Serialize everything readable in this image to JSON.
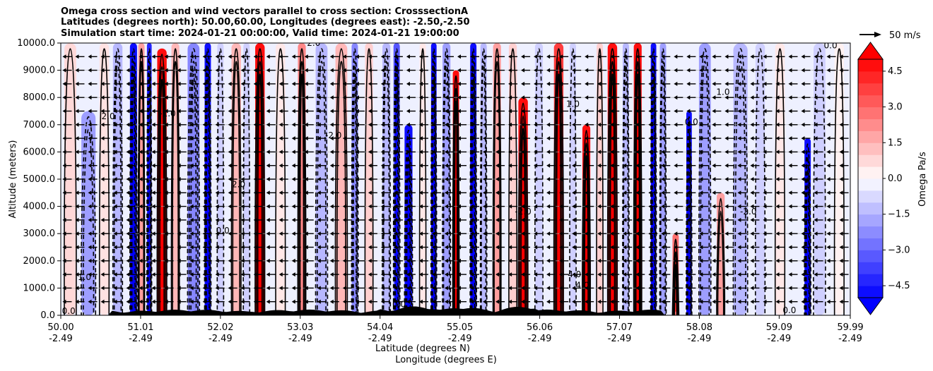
{
  "title_lines": [
    "Omega cross section and wind vectors parallel to cross section: CrosssectionA",
    "Latitudes (degrees north): 50.00,60.00, Longitudes (degrees east): -2.50,-2.50",
    "Simulation start time: 2024-01-21 00:00:00, Valid time: 2024-01-21 19:00:00"
  ],
  "quiver_key": "50 m/s",
  "chart_data": {
    "type": "heatmap",
    "title": "Omega cross section and wind vectors parallel to cross section: CrosssectionA",
    "xlabel": "Latitude (degrees N)",
    "xlabel2": "Longitude (degrees E)",
    "ylabel": "Altitude (meters)",
    "xlim": [
      50.0,
      59.99
    ],
    "ylim": [
      0,
      10000
    ],
    "x_ticks": [
      {
        "value": 50.0,
        "lat": "50.00",
        "lon": "-2.49"
      },
      {
        "value": 51.01,
        "lat": "51.01",
        "lon": "-2.49"
      },
      {
        "value": 52.02,
        "lat": "52.02",
        "lon": "-2.49"
      },
      {
        "value": 53.03,
        "lat": "53.03",
        "lon": "-2.49"
      },
      {
        "value": 54.04,
        "lat": "54.04",
        "lon": "-2.49"
      },
      {
        "value": 55.05,
        "lat": "55.05",
        "lon": "-2.49"
      },
      {
        "value": 56.06,
        "lat": "56.06",
        "lon": "-2.49"
      },
      {
        "value": 57.07,
        "lat": "57.07",
        "lon": "-2.49"
      },
      {
        "value": 58.08,
        "lat": "58.08",
        "lon": "-2.49"
      },
      {
        "value": 59.09,
        "lat": "59.09",
        "lon": "-2.49"
      },
      {
        "value": 59.99,
        "lat": "59.99",
        "lon": "-2.49"
      }
    ],
    "y_ticks": [
      {
        "value": 0,
        "label": "0.0"
      },
      {
        "value": 1000,
        "label": "1000.0"
      },
      {
        "value": 2000,
        "label": "2000.0"
      },
      {
        "value": 3000,
        "label": "3000.0"
      },
      {
        "value": 4000,
        "label": "4000.0"
      },
      {
        "value": 5000,
        "label": "5000.0"
      },
      {
        "value": 6000,
        "label": "6000.0"
      },
      {
        "value": 7000,
        "label": "7000.0"
      },
      {
        "value": 8000,
        "label": "8000.0"
      },
      {
        "value": 9000,
        "label": "9000.0"
      },
      {
        "value": 10000,
        "label": "10000.0"
      }
    ],
    "grid": "horizontal",
    "omega_bands": [
      {
        "lat": 50.12,
        "omega": 0.8,
        "width": 0.15,
        "top": 10000
      },
      {
        "lat": 50.35,
        "omega": -2.0,
        "width": 0.18,
        "top": 7500
      },
      {
        "lat": 50.55,
        "omega": 0.6,
        "width": 0.12,
        "top": 10000
      },
      {
        "lat": 50.72,
        "omega": -1.5,
        "width": 0.12,
        "top": 10000
      },
      {
        "lat": 50.92,
        "omega": -5.0,
        "width": 0.09,
        "top": 10000
      },
      {
        "lat": 51.02,
        "omega": 2.0,
        "width": 0.08,
        "top": 10000
      },
      {
        "lat": 51.12,
        "omega": -4.5,
        "width": 0.06,
        "top": 10000
      },
      {
        "lat": 51.28,
        "omega": 5.0,
        "width": 0.12,
        "top": 9800
      },
      {
        "lat": 51.45,
        "omega": 1.5,
        "width": 0.1,
        "top": 10000
      },
      {
        "lat": 51.68,
        "omega": -2.5,
        "width": 0.15,
        "top": 10000
      },
      {
        "lat": 51.86,
        "omega": -5.0,
        "width": 0.08,
        "top": 10000
      },
      {
        "lat": 52.02,
        "omega": -1.0,
        "width": 0.08,
        "top": 10000
      },
      {
        "lat": 52.22,
        "omega": 1.5,
        "width": 0.12,
        "top": 10000
      },
      {
        "lat": 52.35,
        "omega": -1.0,
        "width": 0.08,
        "top": 10000
      },
      {
        "lat": 52.52,
        "omega": 5.0,
        "width": 0.12,
        "top": 10000
      },
      {
        "lat": 52.78,
        "omega": 0.5,
        "width": 0.12,
        "top": 10000
      },
      {
        "lat": 53.05,
        "omega": 2.5,
        "width": 0.1,
        "top": 10000
      },
      {
        "lat": 53.3,
        "omega": -1.5,
        "width": 0.15,
        "top": 10000
      },
      {
        "lat": 53.55,
        "omega": 1.5,
        "width": 0.15,
        "top": 10000
      },
      {
        "lat": 53.72,
        "omega": -2.5,
        "width": 0.08,
        "top": 10000
      },
      {
        "lat": 53.9,
        "omega": 1.0,
        "width": 0.1,
        "top": 10000
      },
      {
        "lat": 54.12,
        "omega": -1.5,
        "width": 0.1,
        "top": 10000
      },
      {
        "lat": 54.25,
        "omega": -3.5,
        "width": 0.08,
        "top": 10000
      },
      {
        "lat": 54.4,
        "omega": -5.0,
        "width": 0.1,
        "top": 7000
      },
      {
        "lat": 54.58,
        "omega": 0.5,
        "width": 0.08,
        "top": 10000
      },
      {
        "lat": 54.72,
        "omega": -5.0,
        "width": 0.07,
        "top": 10000
      },
      {
        "lat": 54.88,
        "omega": -2.0,
        "width": 0.1,
        "top": 10000
      },
      {
        "lat": 55.0,
        "omega": 5.0,
        "width": 0.08,
        "top": 9000
      },
      {
        "lat": 55.22,
        "omega": -5.0,
        "width": 0.08,
        "top": 10000
      },
      {
        "lat": 55.35,
        "omega": -1.5,
        "width": 0.08,
        "top": 10000
      },
      {
        "lat": 55.52,
        "omega": 2.0,
        "width": 0.1,
        "top": 10000
      },
      {
        "lat": 55.72,
        "omega": 1.0,
        "width": 0.1,
        "top": 10000
      },
      {
        "lat": 55.85,
        "omega": 5.0,
        "width": 0.12,
        "top": 8000
      },
      {
        "lat": 56.05,
        "omega": -1.0,
        "width": 0.1,
        "top": 10000
      },
      {
        "lat": 56.3,
        "omega": 4.0,
        "width": 0.12,
        "top": 10000
      },
      {
        "lat": 56.48,
        "omega": -1.0,
        "width": 0.08,
        "top": 10000
      },
      {
        "lat": 56.65,
        "omega": 5.0,
        "width": 0.1,
        "top": 7000
      },
      {
        "lat": 56.82,
        "omega": 1.0,
        "width": 0.08,
        "top": 10000
      },
      {
        "lat": 56.98,
        "omega": 5.0,
        "width": 0.12,
        "top": 10000
      },
      {
        "lat": 57.15,
        "omega": -1.5,
        "width": 0.08,
        "top": 10000
      },
      {
        "lat": 57.3,
        "omega": 5.0,
        "width": 0.1,
        "top": 10000
      },
      {
        "lat": 57.5,
        "omega": -5.0,
        "width": 0.07,
        "top": 10000
      },
      {
        "lat": 57.62,
        "omega": -2.0,
        "width": 0.08,
        "top": 10000
      },
      {
        "lat": 57.78,
        "omega": 3.0,
        "width": 0.08,
        "top": 3000
      },
      {
        "lat": 57.95,
        "omega": -5.0,
        "width": 0.07,
        "top": 7500
      },
      {
        "lat": 58.15,
        "omega": -2.0,
        "width": 0.15,
        "top": 10000
      },
      {
        "lat": 58.35,
        "omega": 2.0,
        "width": 0.1,
        "top": 4500
      },
      {
        "lat": 58.6,
        "omega": -1.5,
        "width": 0.18,
        "top": 10000
      },
      {
        "lat": 58.85,
        "omega": -1.0,
        "width": 0.12,
        "top": 10000
      },
      {
        "lat": 59.1,
        "omega": 0.5,
        "width": 0.12,
        "top": 10000
      },
      {
        "lat": 59.45,
        "omega": -5.0,
        "width": 0.08,
        "top": 6500
      },
      {
        "lat": 59.6,
        "omega": -1.0,
        "width": 0.15,
        "top": 10000
      },
      {
        "lat": 59.85,
        "omega": 0.3,
        "width": 0.12,
        "top": 10000
      }
    ],
    "contour_labels": [
      {
        "text": "0.0",
        "lat": 50.1,
        "alt": 50
      },
      {
        "text": "1.0",
        "lat": 50.3,
        "alt": 1300
      },
      {
        "text": "2.0",
        "lat": 50.6,
        "alt": 7200
      },
      {
        "text": "-1.0",
        "lat": 51.35,
        "alt": 7300
      },
      {
        "text": "2.0",
        "lat": 52.25,
        "alt": 4700
      },
      {
        "text": "0.0",
        "lat": 52.05,
        "alt": 3000
      },
      {
        "text": "-2.0",
        "lat": 53.45,
        "alt": 6500
      },
      {
        "text": "2.0",
        "lat": 53.2,
        "alt": 9900
      },
      {
        "text": "0.0",
        "lat": 54.28,
        "alt": 300
      },
      {
        "text": "-2.0",
        "lat": 55.85,
        "alt": 3700
      },
      {
        "text": "1.0",
        "lat": 56.48,
        "alt": 7650
      },
      {
        "text": "0.0",
        "lat": 57.98,
        "alt": 7000
      },
      {
        "text": "4.0",
        "lat": 56.5,
        "alt": 1400
      },
      {
        "text": "4.0",
        "lat": 56.6,
        "alt": 1000
      },
      {
        "text": "-2.0",
        "lat": 58.7,
        "alt": 3700
      },
      {
        "text": "0.0",
        "lat": 59.22,
        "alt": 80
      },
      {
        "text": "1.0",
        "lat": 58.38,
        "alt": 8100
      },
      {
        "text": "0.0",
        "lat": 59.74,
        "alt": 9800
      }
    ],
    "wind_vectors": {
      "direction": "leftward",
      "rows_alt": [
        500,
        1000,
        1500,
        2000,
        2500,
        3000,
        3500,
        4000,
        4500,
        5000,
        5500,
        6000,
        6500,
        7000,
        7500,
        8000,
        8500,
        9000,
        9500
      ]
    },
    "colorbar": {
      "label": "Omega Pa/s",
      "range": [
        -5.0,
        5.0
      ],
      "extend": "both",
      "tick_values": [
        4.5,
        3.0,
        1.5,
        0.0,
        -1.5,
        -3.0,
        -4.5
      ],
      "tick_labels": [
        "4.5",
        "3.0",
        "1.5",
        "0.0",
        "−1.5",
        "−3.0",
        "−4.5"
      ],
      "colormap": "bwr"
    },
    "terrain_color": "#000000"
  }
}
